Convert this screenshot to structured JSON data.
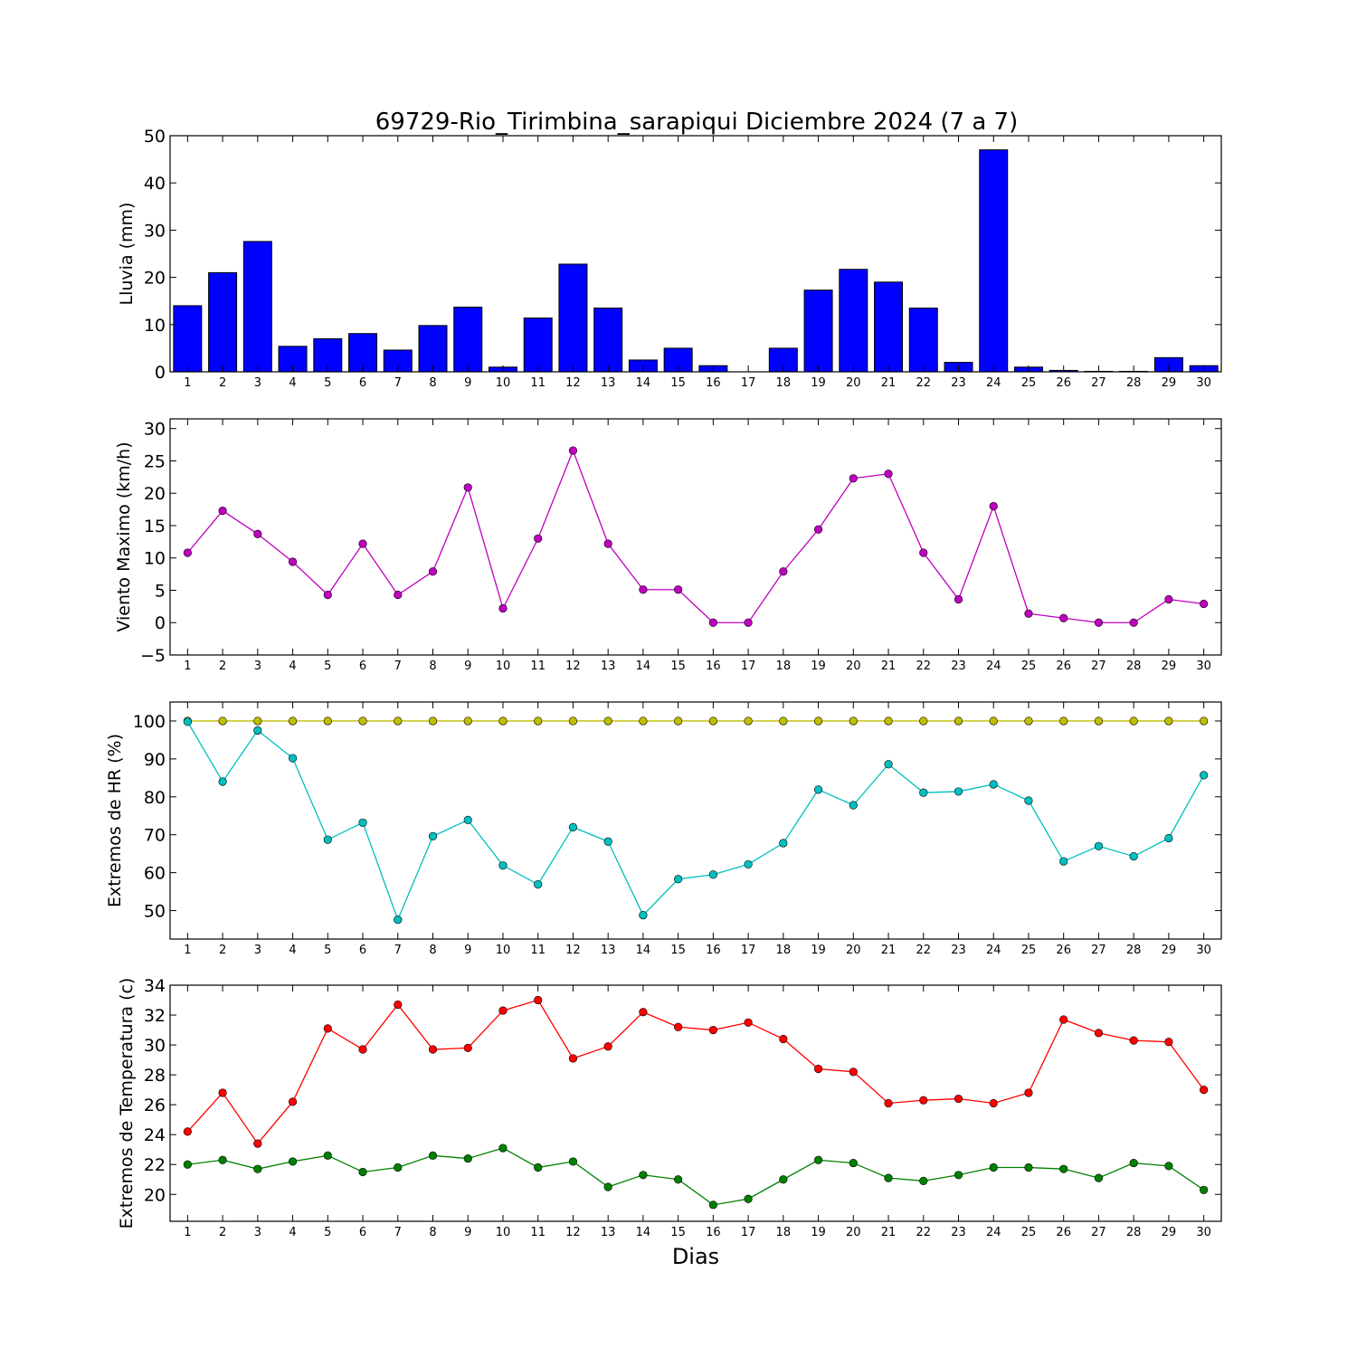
{
  "chart_data": {
    "title": "69729-Rio_Tirimbina_sarapiqui Diciembre 2024  (7 a 7)",
    "xlabel": "Dias",
    "categories": [
      "1",
      "2",
      "3",
      "4",
      "5",
      "6",
      "7",
      "8",
      "9",
      "10",
      "11",
      "12",
      "13",
      "14",
      "15",
      "16",
      "17",
      "18",
      "19",
      "20",
      "21",
      "22",
      "23",
      "24",
      "25",
      "26",
      "27",
      "28",
      "29",
      "30"
    ],
    "panels": [
      {
        "type": "bar",
        "ylabel": "Lluvia (mm)",
        "ylim": [
          0,
          50
        ],
        "yticks": [
          0,
          10,
          20,
          30,
          40,
          50
        ],
        "grid": false,
        "series": [
          {
            "color": "#0000ff",
            "values": [
              14.0,
              21.0,
              27.6,
              5.4,
              7.0,
              8.1,
              4.6,
              9.8,
              13.7,
              1.0,
              11.4,
              22.8,
              13.5,
              2.5,
              5.0,
              1.3,
              0.0,
              5.0,
              17.3,
              21.7,
              19.0,
              13.5,
              2.0,
              47.0,
              1.0,
              0.3,
              0.1,
              0.1,
              3.0,
              1.3
            ]
          }
        ]
      },
      {
        "type": "line",
        "ylabel": "Viento Maximo (km/h)",
        "ylim": [
          -5,
          31.5
        ],
        "yticks": [
          -5,
          0,
          5,
          10,
          15,
          20,
          25,
          30
        ],
        "grid": false,
        "series": [
          {
            "color": "#bf00bf",
            "values": [
              10.8,
              17.3,
              13.7,
              9.4,
              4.3,
              12.2,
              4.3,
              7.9,
              20.9,
              2.2,
              13.0,
              26.6,
              12.2,
              5.1,
              5.1,
              0.0,
              0.0,
              7.9,
              14.4,
              22.3,
              23.0,
              10.8,
              3.6,
              18.0,
              1.4,
              0.7,
              0.0,
              0.0,
              3.6,
              2.9
            ]
          }
        ]
      },
      {
        "type": "line",
        "ylabel": "Extremos de HR (%)",
        "ylim": [
          42.5,
          105
        ],
        "yticks": [
          50,
          60,
          70,
          80,
          90,
          100
        ],
        "grid": false,
        "series": [
          {
            "color": "#bfbf00",
            "values": [
              100,
              100,
              100,
              100,
              100,
              100,
              100,
              100,
              100,
              100,
              100,
              100,
              100,
              100,
              100,
              100,
              100,
              100,
              100,
              100,
              100,
              100,
              100,
              100,
              100,
              100,
              100,
              100,
              100,
              100
            ]
          },
          {
            "color": "#00bfbf",
            "values": [
              99.8,
              84.0,
              97.5,
              90.2,
              68.7,
              73.2,
              47.6,
              69.6,
              73.9,
              61.9,
              56.9,
              72.0,
              68.2,
              48.8,
              58.3,
              59.5,
              62.2,
              67.8,
              81.9,
              77.8,
              88.6,
              81.1,
              81.4,
              83.3,
              79.0,
              63.0,
              67.0,
              64.3,
              69.1,
              85.7
            ]
          }
        ]
      },
      {
        "type": "line",
        "ylabel": "Extremos de Temperatura (c)",
        "ylim": [
          18.2,
          34
        ],
        "yticks": [
          20,
          22,
          24,
          26,
          28,
          30,
          32,
          34
        ],
        "grid": false,
        "series": [
          {
            "color": "#ff0000",
            "values": [
              24.2,
              26.8,
              23.4,
              26.2,
              31.1,
              29.7,
              32.7,
              29.7,
              29.8,
              32.3,
              33.0,
              29.1,
              29.9,
              32.2,
              31.2,
              31.0,
              31.5,
              30.4,
              28.4,
              28.2,
              26.1,
              26.3,
              26.4,
              26.1,
              26.8,
              31.7,
              30.8,
              30.3,
              30.2,
              27.0
            ]
          },
          {
            "color": "#008000",
            "values": [
              22.0,
              22.3,
              21.7,
              22.2,
              22.6,
              21.5,
              21.8,
              22.6,
              22.4,
              23.1,
              21.8,
              22.2,
              20.5,
              21.3,
              21.0,
              19.3,
              19.7,
              21.0,
              22.3,
              22.1,
              21.1,
              20.9,
              21.3,
              21.8,
              21.8,
              21.7,
              21.1,
              22.1,
              21.9,
              20.3
            ]
          }
        ]
      }
    ]
  }
}
